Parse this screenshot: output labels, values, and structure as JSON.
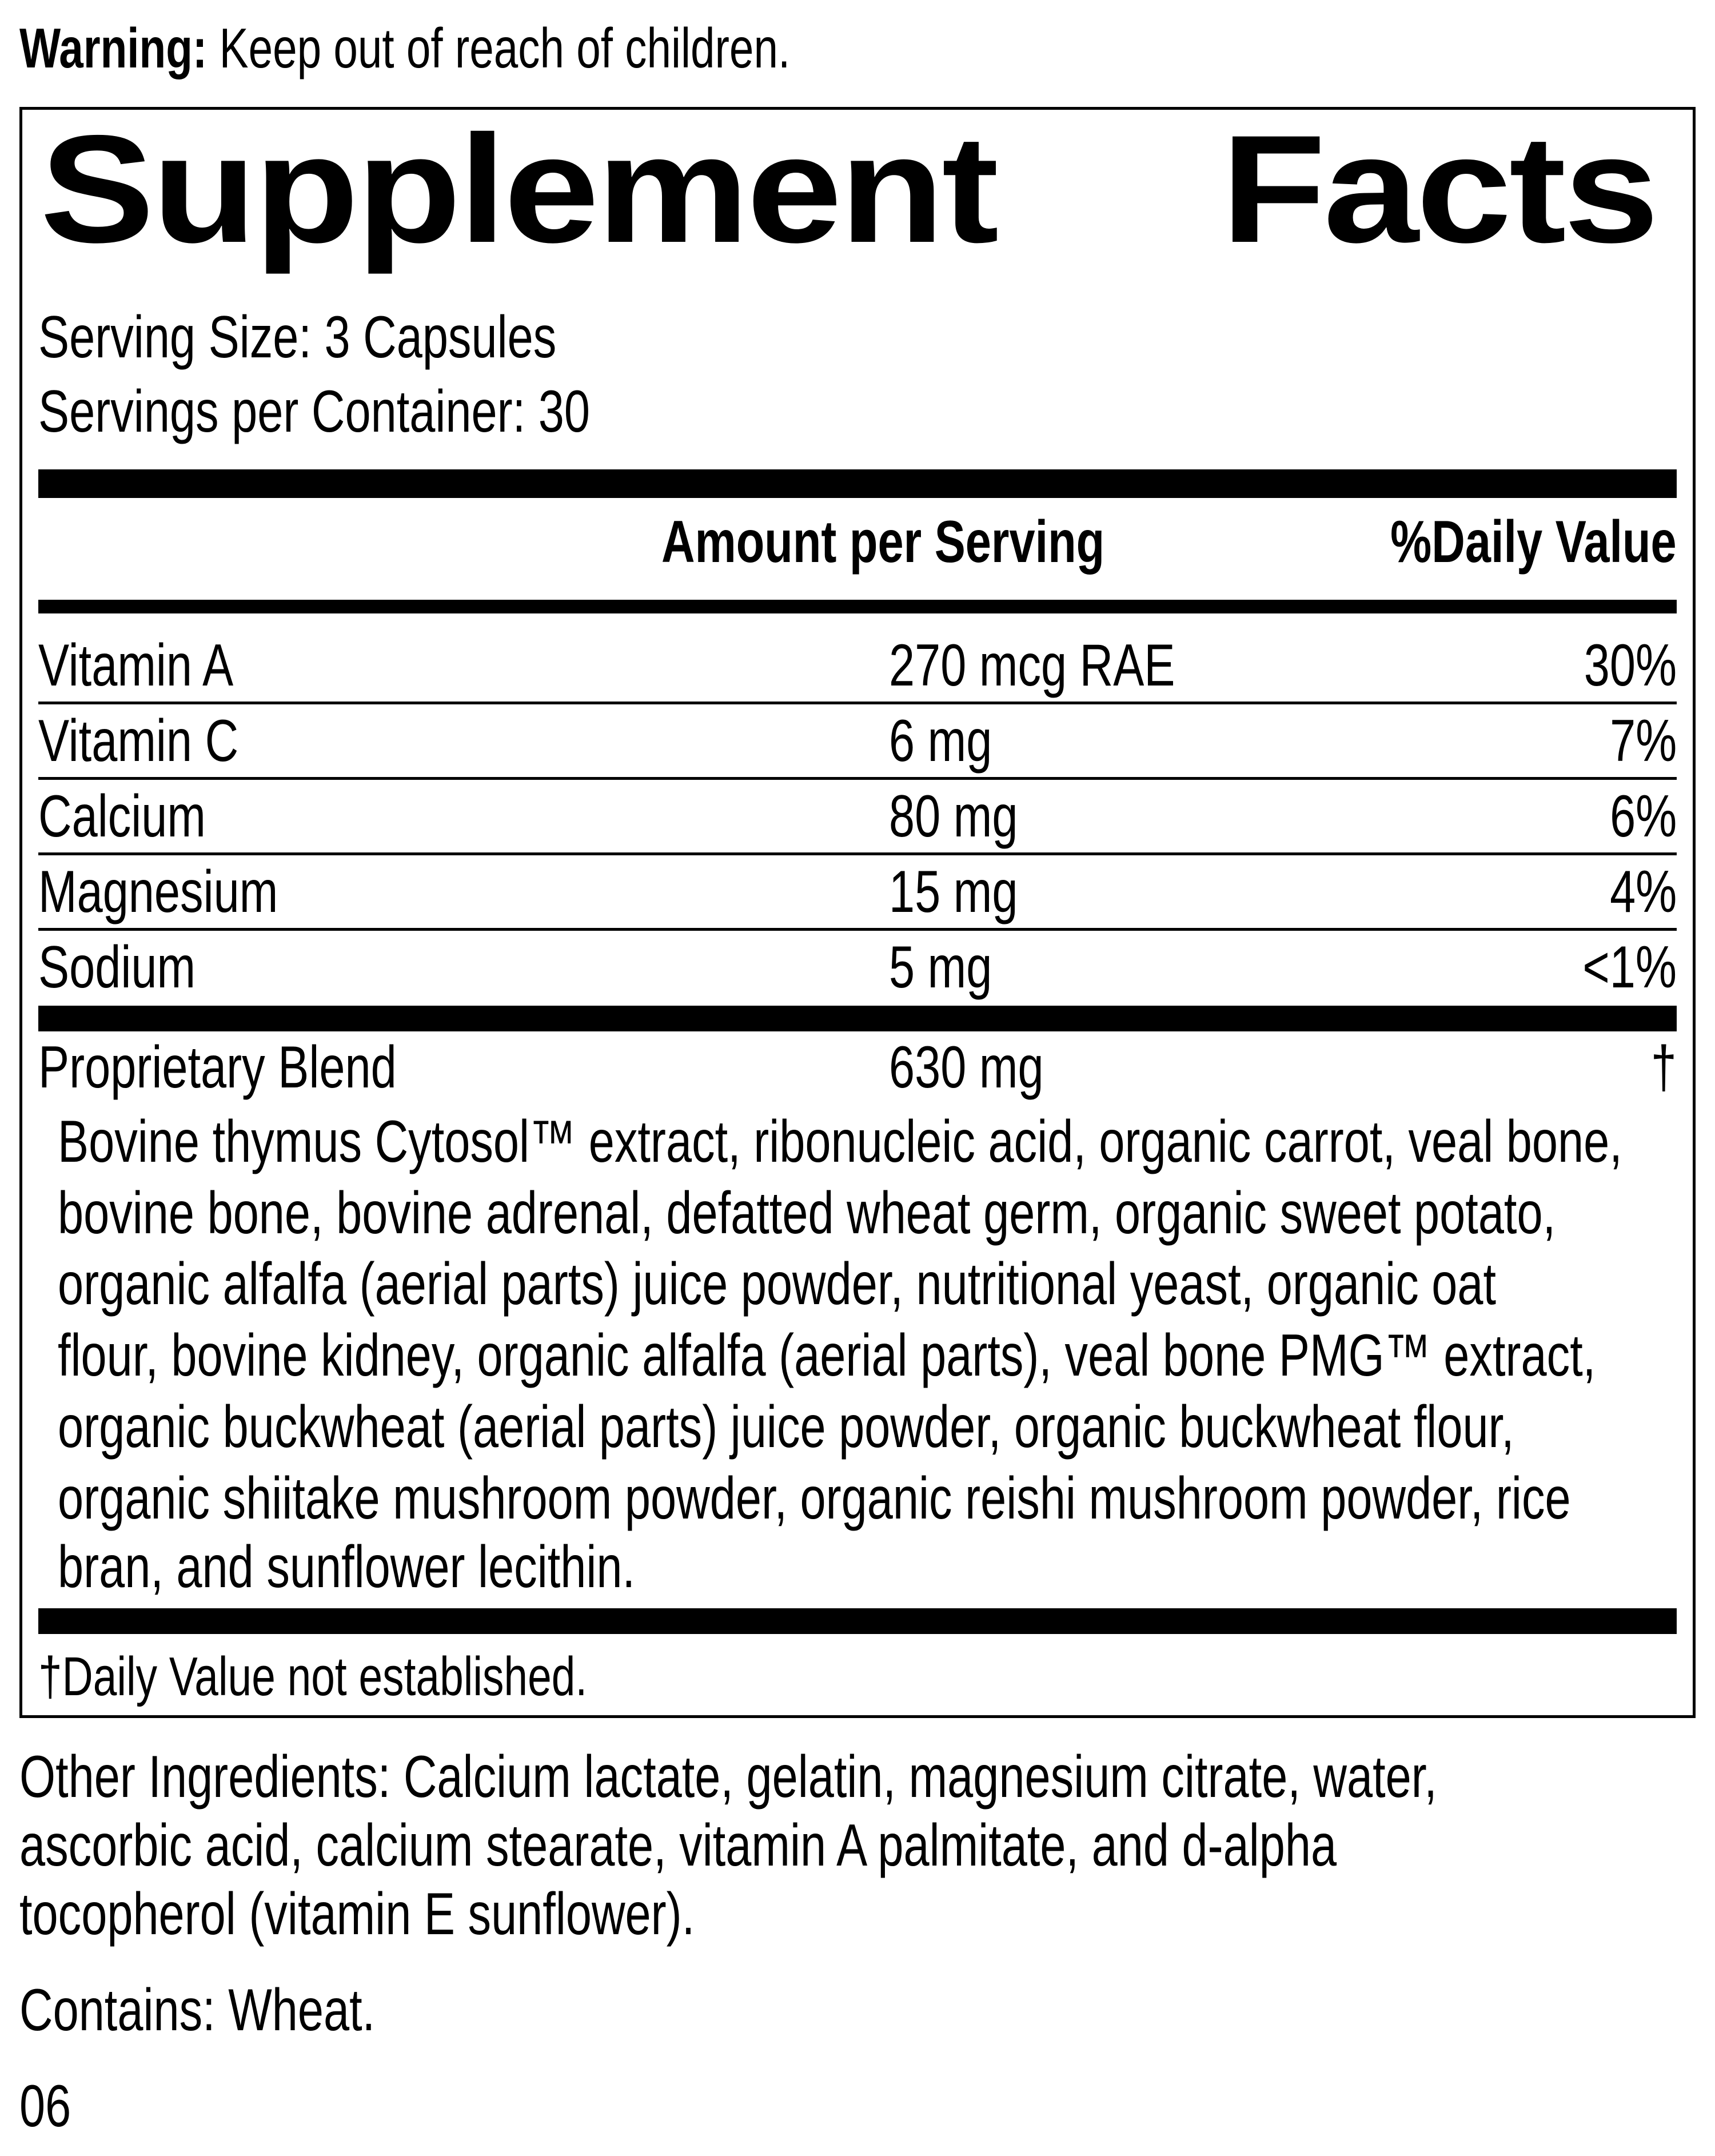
{
  "warning": {
    "label": "Warning:",
    "text": "Keep out of reach of children."
  },
  "title": {
    "word1": "Supplement",
    "word2": "Facts"
  },
  "serving": {
    "size": "Serving Size: 3 Capsules",
    "per_container": "Servings per Container: 30"
  },
  "header": {
    "amount": "Amount per Serving",
    "daily_value": "%Daily Value"
  },
  "nutrients": [
    {
      "name": "Vitamin A",
      "amount": "270 mcg RAE",
      "dv": "30%"
    },
    {
      "name": "Vitamin C",
      "amount": "6 mg",
      "dv": "7%"
    },
    {
      "name": "Calcium",
      "amount": "80 mg",
      "dv": "6%"
    },
    {
      "name": "Magnesium",
      "amount": "15 mg",
      "dv": "4%"
    },
    {
      "name": "Sodium",
      "amount": "5 mg",
      "dv": "<1%"
    }
  ],
  "blend": {
    "name": "Proprietary Blend",
    "amount": "630 mg",
    "dv": "†",
    "ingredients_lines": [
      "Bovine thymus Cytosol™ extract, ribonucleic acid, organic carrot, veal bone,",
      "bovine bone, bovine adrenal, defatted wheat germ, organic sweet potato,",
      "organic alfalfa (aerial parts) juice powder, nutritional yeast, organic oat",
      "flour, bovine kidney, organic alfalfa (aerial parts), veal bone PMG™ extract,",
      "organic buckwheat (aerial parts) juice powder, organic buckwheat flour,",
      "organic shiitake mushroom powder, organic reishi mushroom powder, rice",
      "bran, and sunflower lecithin."
    ]
  },
  "footnote": "†Daily Value not established.",
  "other_ingredients_lines": [
    "Other Ingredients: Calcium lactate, gelatin, magnesium citrate, water,",
    "ascorbic acid, calcium stearate, vitamin A palmitate, and d-alpha",
    "tocopherol (vitamin E sunflower)."
  ],
  "contains": "Contains: Wheat.",
  "code": "06"
}
